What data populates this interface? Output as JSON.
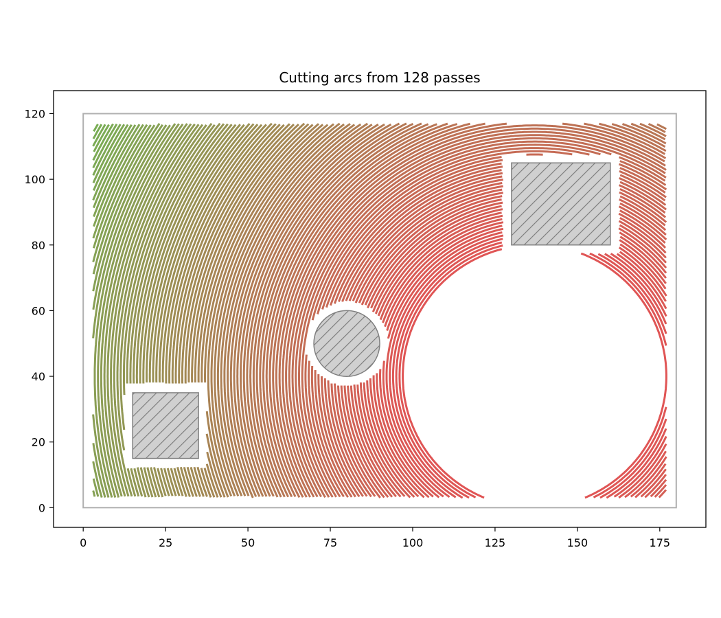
{
  "chart_data": {
    "type": "line",
    "title": "Cutting arcs from 128 passes",
    "xlabel": "",
    "ylabel": "",
    "xlim": [
      -9,
      189
    ],
    "ylim": [
      -6,
      127
    ],
    "xticks": [
      0,
      25,
      50,
      75,
      100,
      125,
      150,
      175
    ],
    "yticks": [
      0,
      20,
      40,
      60,
      80,
      100,
      120
    ],
    "grid": false,
    "legend": "none",
    "stock_boundary": {
      "x": [
        0,
        180
      ],
      "y": [
        0,
        120
      ],
      "color": "#b0b0b0"
    },
    "obstacles": [
      {
        "shape": "rectangle",
        "x": [
          15,
          35
        ],
        "y": [
          15,
          35
        ]
      },
      {
        "shape": "circle",
        "cx": 80,
        "cy": 50,
        "r": 10
      },
      {
        "shape": "rectangle",
        "x": [
          130,
          160
        ],
        "y": [
          80,
          105
        ]
      }
    ],
    "obstacle_fill": "#d0d0d0",
    "obstacle_edge": "#808080",
    "passes": 128,
    "arc_center": [
      137,
      40
    ],
    "arc_radius_range": [
      40,
      165
    ],
    "arc_color_inner": "#e05555",
    "arc_color_outer": "#6db654",
    "cut_bounds": {
      "x": [
        3,
        177
      ],
      "y": [
        3,
        117
      ]
    }
  }
}
